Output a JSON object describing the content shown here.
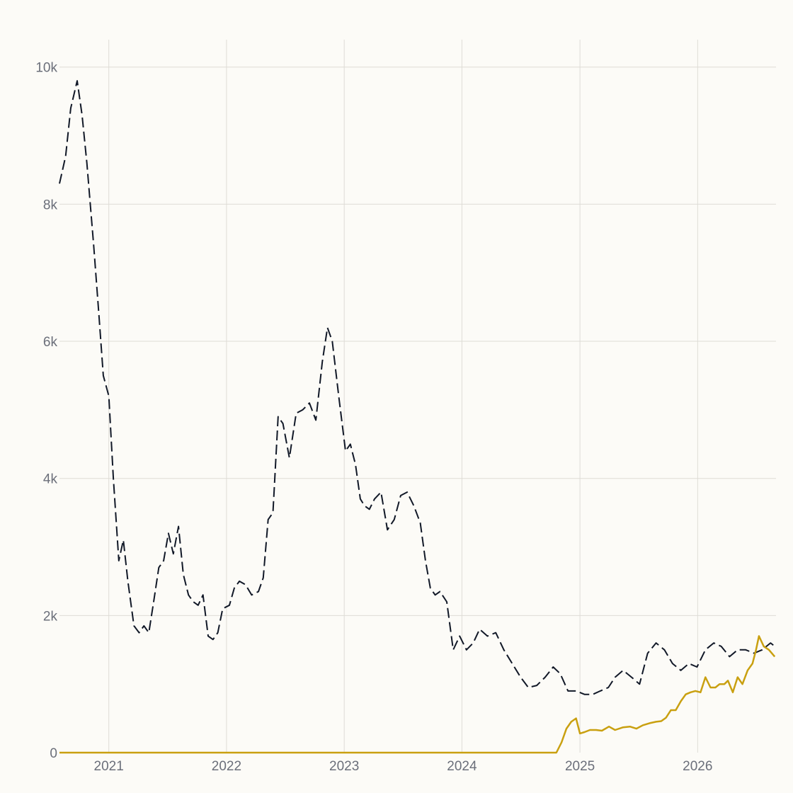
{
  "chart_data": {
    "type": "line",
    "title": "",
    "xlabel": "",
    "ylabel": "",
    "x_ticks": [
      "2021",
      "2022",
      "2023",
      "2024",
      "2025",
      "2026"
    ],
    "y_ticks": [
      "0",
      "2k",
      "4k",
      "6k",
      "8k",
      "10k"
    ],
    "xlim": [
      "2020-08-01",
      "2026-09-01"
    ],
    "ylim": [
      0,
      10400
    ],
    "grid": true,
    "legend": "none",
    "series": [
      {
        "color": "#111827",
        "style": "dashed",
        "x": [
          "2020-08-01",
          "2020-08-20",
          "2020-09-05",
          "2020-09-25",
          "2020-10-10",
          "2020-10-25",
          "2020-11-15",
          "2020-12-01",
          "2020-12-15",
          "2021-01-01",
          "2021-01-15",
          "2021-02-01",
          "2021-02-15",
          "2021-03-01",
          "2021-03-20",
          "2021-04-05",
          "2021-04-20",
          "2021-05-05",
          "2021-05-20",
          "2021-06-05",
          "2021-06-20",
          "2021-07-05",
          "2021-07-20",
          "2021-08-05",
          "2021-08-20",
          "2021-09-05",
          "2021-09-20",
          "2021-10-05",
          "2021-10-20",
          "2021-11-05",
          "2021-11-20",
          "2021-12-05",
          "2021-12-20",
          "2022-01-10",
          "2022-01-25",
          "2022-02-10",
          "2022-03-01",
          "2022-03-20",
          "2022-04-10",
          "2022-04-25",
          "2022-05-10",
          "2022-05-25",
          "2022-06-10",
          "2022-06-25",
          "2022-07-15",
          "2022-08-05",
          "2022-08-25",
          "2022-09-15",
          "2022-10-05",
          "2022-10-25",
          "2022-11-10",
          "2022-11-25",
          "2022-12-15",
          "2023-01-05",
          "2023-01-20",
          "2023-02-05",
          "2023-02-20",
          "2023-03-05",
          "2023-03-20",
          "2023-04-05",
          "2023-04-25",
          "2023-05-15",
          "2023-06-05",
          "2023-06-25",
          "2023-07-15",
          "2023-08-05",
          "2023-08-25",
          "2023-09-10",
          "2023-09-25",
          "2023-10-10",
          "2023-10-25",
          "2023-11-15",
          "2023-12-05",
          "2023-12-25",
          "2024-01-15",
          "2024-02-05",
          "2024-02-25",
          "2024-03-20",
          "2024-04-15",
          "2024-05-10",
          "2024-06-05",
          "2024-07-01",
          "2024-07-25",
          "2024-08-20",
          "2024-09-15",
          "2024-10-10",
          "2024-11-01",
          "2024-11-25",
          "2024-12-20",
          "2025-01-15",
          "2025-02-10",
          "2025-03-05",
          "2025-03-30",
          "2025-04-20",
          "2025-05-15",
          "2025-06-10",
          "2025-07-05",
          "2025-07-30",
          "2025-08-25",
          "2025-09-20",
          "2025-10-15",
          "2025-11-10",
          "2025-12-05",
          "2025-12-30",
          "2026-01-25",
          "2026-02-20",
          "2026-03-15",
          "2026-04-10",
          "2026-05-05",
          "2026-05-30",
          "2026-06-25",
          "2026-07-20",
          "2026-08-15",
          "2026-08-28"
        ],
        "values": [
          8300,
          8700,
          9400,
          9800,
          9300,
          8600,
          7400,
          6400,
          5500,
          5200,
          4000,
          2800,
          3100,
          2500,
          1850,
          1750,
          1850,
          1750,
          2200,
          2700,
          2800,
          3200,
          2900,
          3300,
          2600,
          2300,
          2200,
          2150,
          2300,
          1700,
          1650,
          1750,
          2100,
          2150,
          2400,
          2500,
          2450,
          2300,
          2350,
          2550,
          3400,
          3500,
          4900,
          4800,
          4300,
          4950,
          5000,
          5100,
          4850,
          5700,
          6200,
          6000,
          5200,
          4400,
          4500,
          4200,
          3700,
          3600,
          3550,
          3700,
          3800,
          3250,
          3400,
          3750,
          3800,
          3600,
          3350,
          2800,
          2400,
          2300,
          2350,
          2200,
          1500,
          1700,
          1500,
          1600,
          1800,
          1700,
          1750,
          1500,
          1300,
          1100,
          950,
          980,
          1100,
          1250,
          1150,
          900,
          900,
          850,
          850,
          900,
          950,
          1100,
          1200,
          1100,
          1000,
          1450,
          1600,
          1500,
          1300,
          1200,
          1300,
          1250,
          1500,
          1600,
          1550,
          1400,
          1500,
          1500,
          1450,
          1500,
          1600,
          1550
        ]
      },
      {
        "color": "#c9a010",
        "style": "solid",
        "x": [
          "2020-08-01",
          "2024-10-20",
          "2024-11-05",
          "2024-11-20",
          "2024-12-05",
          "2024-12-20",
          "2025-01-01",
          "2025-01-15",
          "2025-02-01",
          "2025-02-20",
          "2025-03-10",
          "2025-04-01",
          "2025-04-20",
          "2025-05-15",
          "2025-06-05",
          "2025-06-25",
          "2025-07-15",
          "2025-08-05",
          "2025-08-25",
          "2025-09-10",
          "2025-09-25",
          "2025-10-10",
          "2025-10-25",
          "2025-11-10",
          "2025-11-25",
          "2025-12-10",
          "2025-12-25",
          "2026-01-10",
          "2026-01-25",
          "2026-02-10",
          "2026-02-25",
          "2026-03-10",
          "2026-03-25",
          "2026-04-05",
          "2026-04-20",
          "2026-05-05",
          "2026-05-20",
          "2026-06-05",
          "2026-06-20",
          "2026-07-01",
          "2026-07-10",
          "2026-07-25",
          "2026-08-10",
          "2026-08-28"
        ],
        "values": [
          0,
          0,
          150,
          350,
          450,
          500,
          280,
          300,
          330,
          330,
          320,
          380,
          330,
          370,
          380,
          350,
          400,
          430,
          450,
          460,
          510,
          620,
          620,
          750,
          850,
          880,
          900,
          880,
          1100,
          950,
          950,
          1000,
          1000,
          1050,
          880,
          1100,
          1000,
          1200,
          1300,
          1500,
          1700,
          1550,
          1500,
          1400
        ]
      }
    ]
  }
}
